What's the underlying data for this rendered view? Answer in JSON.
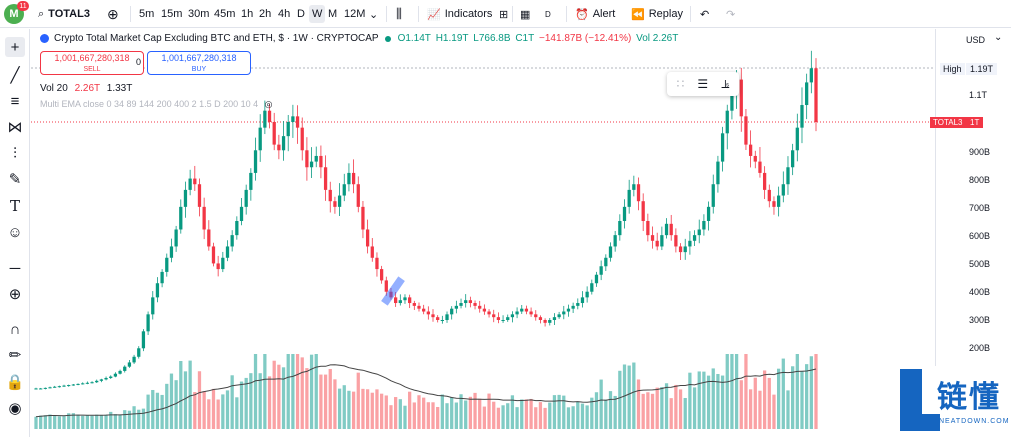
{
  "topbar": {
    "avatar_letter": "M",
    "avatar_badge": "11",
    "symbol": "TOTAL3",
    "intervals": [
      "5m",
      "15m",
      "30m",
      "45m",
      "1h",
      "2h",
      "4h",
      "D",
      "W",
      "M",
      "12M"
    ],
    "selected_interval": "W",
    "indicators_label": "Indicators",
    "layout_label": "D",
    "alert_label": "Alert",
    "replay_label": "Replay"
  },
  "legend": {
    "title": "Crypto Total Market Cap Excluding BTC and ETH, $ · 1W · CRYPTOCAP",
    "open": "O1.14T",
    "high": "H1.19T",
    "low": "L766.8B",
    "close": "C1T",
    "change": "−141.87B (−12.41%)",
    "vol": "Vol 2.26T"
  },
  "trade": {
    "sell_price": "1,001,667,280,318",
    "sell_label": "SELL",
    "buy_price": "1,001,667,280,318",
    "buy_label": "BUY",
    "spread": "0"
  },
  "volume_line": {
    "label": "Vol 20",
    "v1": "2.26T",
    "v2": "1.33T"
  },
  "ema_line": "Multi EMA close 0 34 89 144 200 400 2 1.5 D 200 10 4",
  "price_scale": {
    "currency": "USD",
    "high_tag": "High",
    "high_value": "1.19T",
    "symbol_tag": "TOTAL3",
    "symbol_value": "1T",
    "labels": [
      "1.1T",
      "900B",
      "800B",
      "700B",
      "600B",
      "500B",
      "400B",
      "300B",
      "200B"
    ]
  },
  "watermark": {
    "cn": "链懂",
    "en": "NEATDOWN.COM"
  },
  "colors": {
    "up": "#089981",
    "down": "#f23645",
    "accent": "#2962ff"
  },
  "chart_data": {
    "type": "candlestick",
    "title": "Crypto Total Market Cap Excluding BTC and ETH, $ · 1W · CRYPTOCAP",
    "ylim": [
      200,
      1190
    ],
    "unit": "B USD",
    "close_series": [
      58,
      58,
      60,
      62,
      64,
      66,
      68,
      70,
      72,
      74,
      76,
      78,
      80,
      85,
      90,
      95,
      100,
      110,
      120,
      135,
      150,
      170,
      200,
      260,
      320,
      380,
      430,
      470,
      520,
      560,
      620,
      700,
      760,
      800,
      780,
      700,
      620,
      560,
      500,
      480,
      520,
      560,
      600,
      650,
      700,
      760,
      820,
      900,
      980,
      1040,
      1000,
      920,
      900,
      950,
      1000,
      1020,
      980,
      900,
      840,
      860,
      880,
      840,
      760,
      720,
      700,
      740,
      780,
      820,
      780,
      700,
      620,
      560,
      520,
      480,
      440,
      400,
      380,
      360,
      370,
      380,
      360,
      350,
      340,
      330,
      320,
      310,
      300,
      300,
      320,
      340,
      350,
      360,
      370,
      360,
      350,
      340,
      330,
      320,
      310,
      300,
      300,
      310,
      320,
      330,
      340,
      330,
      320,
      310,
      300,
      290,
      300,
      310,
      320,
      330,
      340,
      350,
      360,
      380,
      400,
      430,
      460,
      490,
      520,
      560,
      600,
      650,
      700,
      760,
      780,
      720,
      650,
      600,
      580,
      560,
      600,
      640,
      600,
      560,
      540,
      560,
      580,
      600,
      620,
      650,
      700,
      780,
      860,
      960,
      1040,
      1100,
      1150,
      1020,
      920,
      880,
      860,
      820,
      760,
      720,
      700,
      740,
      780,
      840,
      900,
      980,
      1060,
      1140,
      1190,
      1000
    ]
  }
}
